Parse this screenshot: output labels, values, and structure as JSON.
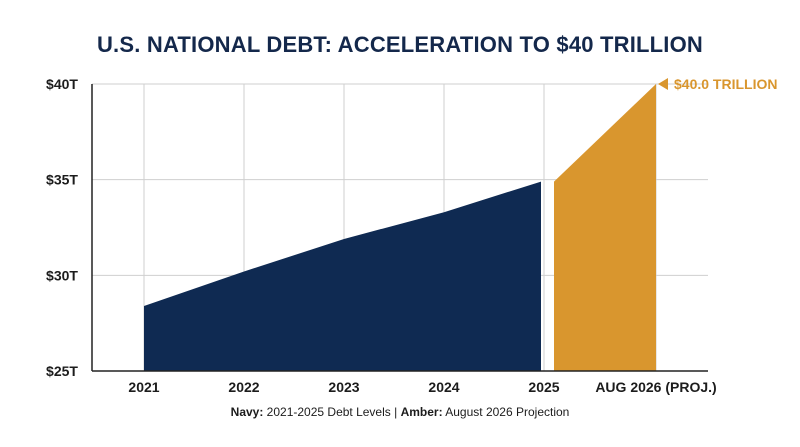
{
  "chart_data": {
    "type": "area",
    "title": "U.S. NATIONAL DEBT: ACCELERATION TO $40 TRILLION",
    "categories": [
      "2021",
      "2022",
      "2023",
      "2024",
      "2025",
      "AUG 2026 (PROJ.)"
    ],
    "ytick_labels": [
      "$25T",
      "$30T",
      "$35T",
      "$40T"
    ],
    "ylim": [
      25,
      40
    ],
    "grid": true,
    "series": [
      {
        "name": "2021-2025 Debt Levels",
        "color": "#0f2a52",
        "x": [
          0,
          1,
          2,
          3,
          4
        ],
        "values": [
          28.4,
          30.2,
          31.9,
          33.3,
          34.9
        ]
      },
      {
        "name": "August 2026 Projection",
        "color": "#d9962e",
        "x": [
          4,
          5
        ],
        "values": [
          34.9,
          40.0
        ]
      }
    ],
    "annotation": {
      "text": "$40.0 TRILLION",
      "x": 5,
      "y": 40.0
    },
    "caption": {
      "navy_label": "Navy:",
      "navy_text": " 2021-2025 Debt Levels | ",
      "amber_label": "Amber:",
      "amber_text": " August 2026 Projection"
    }
  }
}
